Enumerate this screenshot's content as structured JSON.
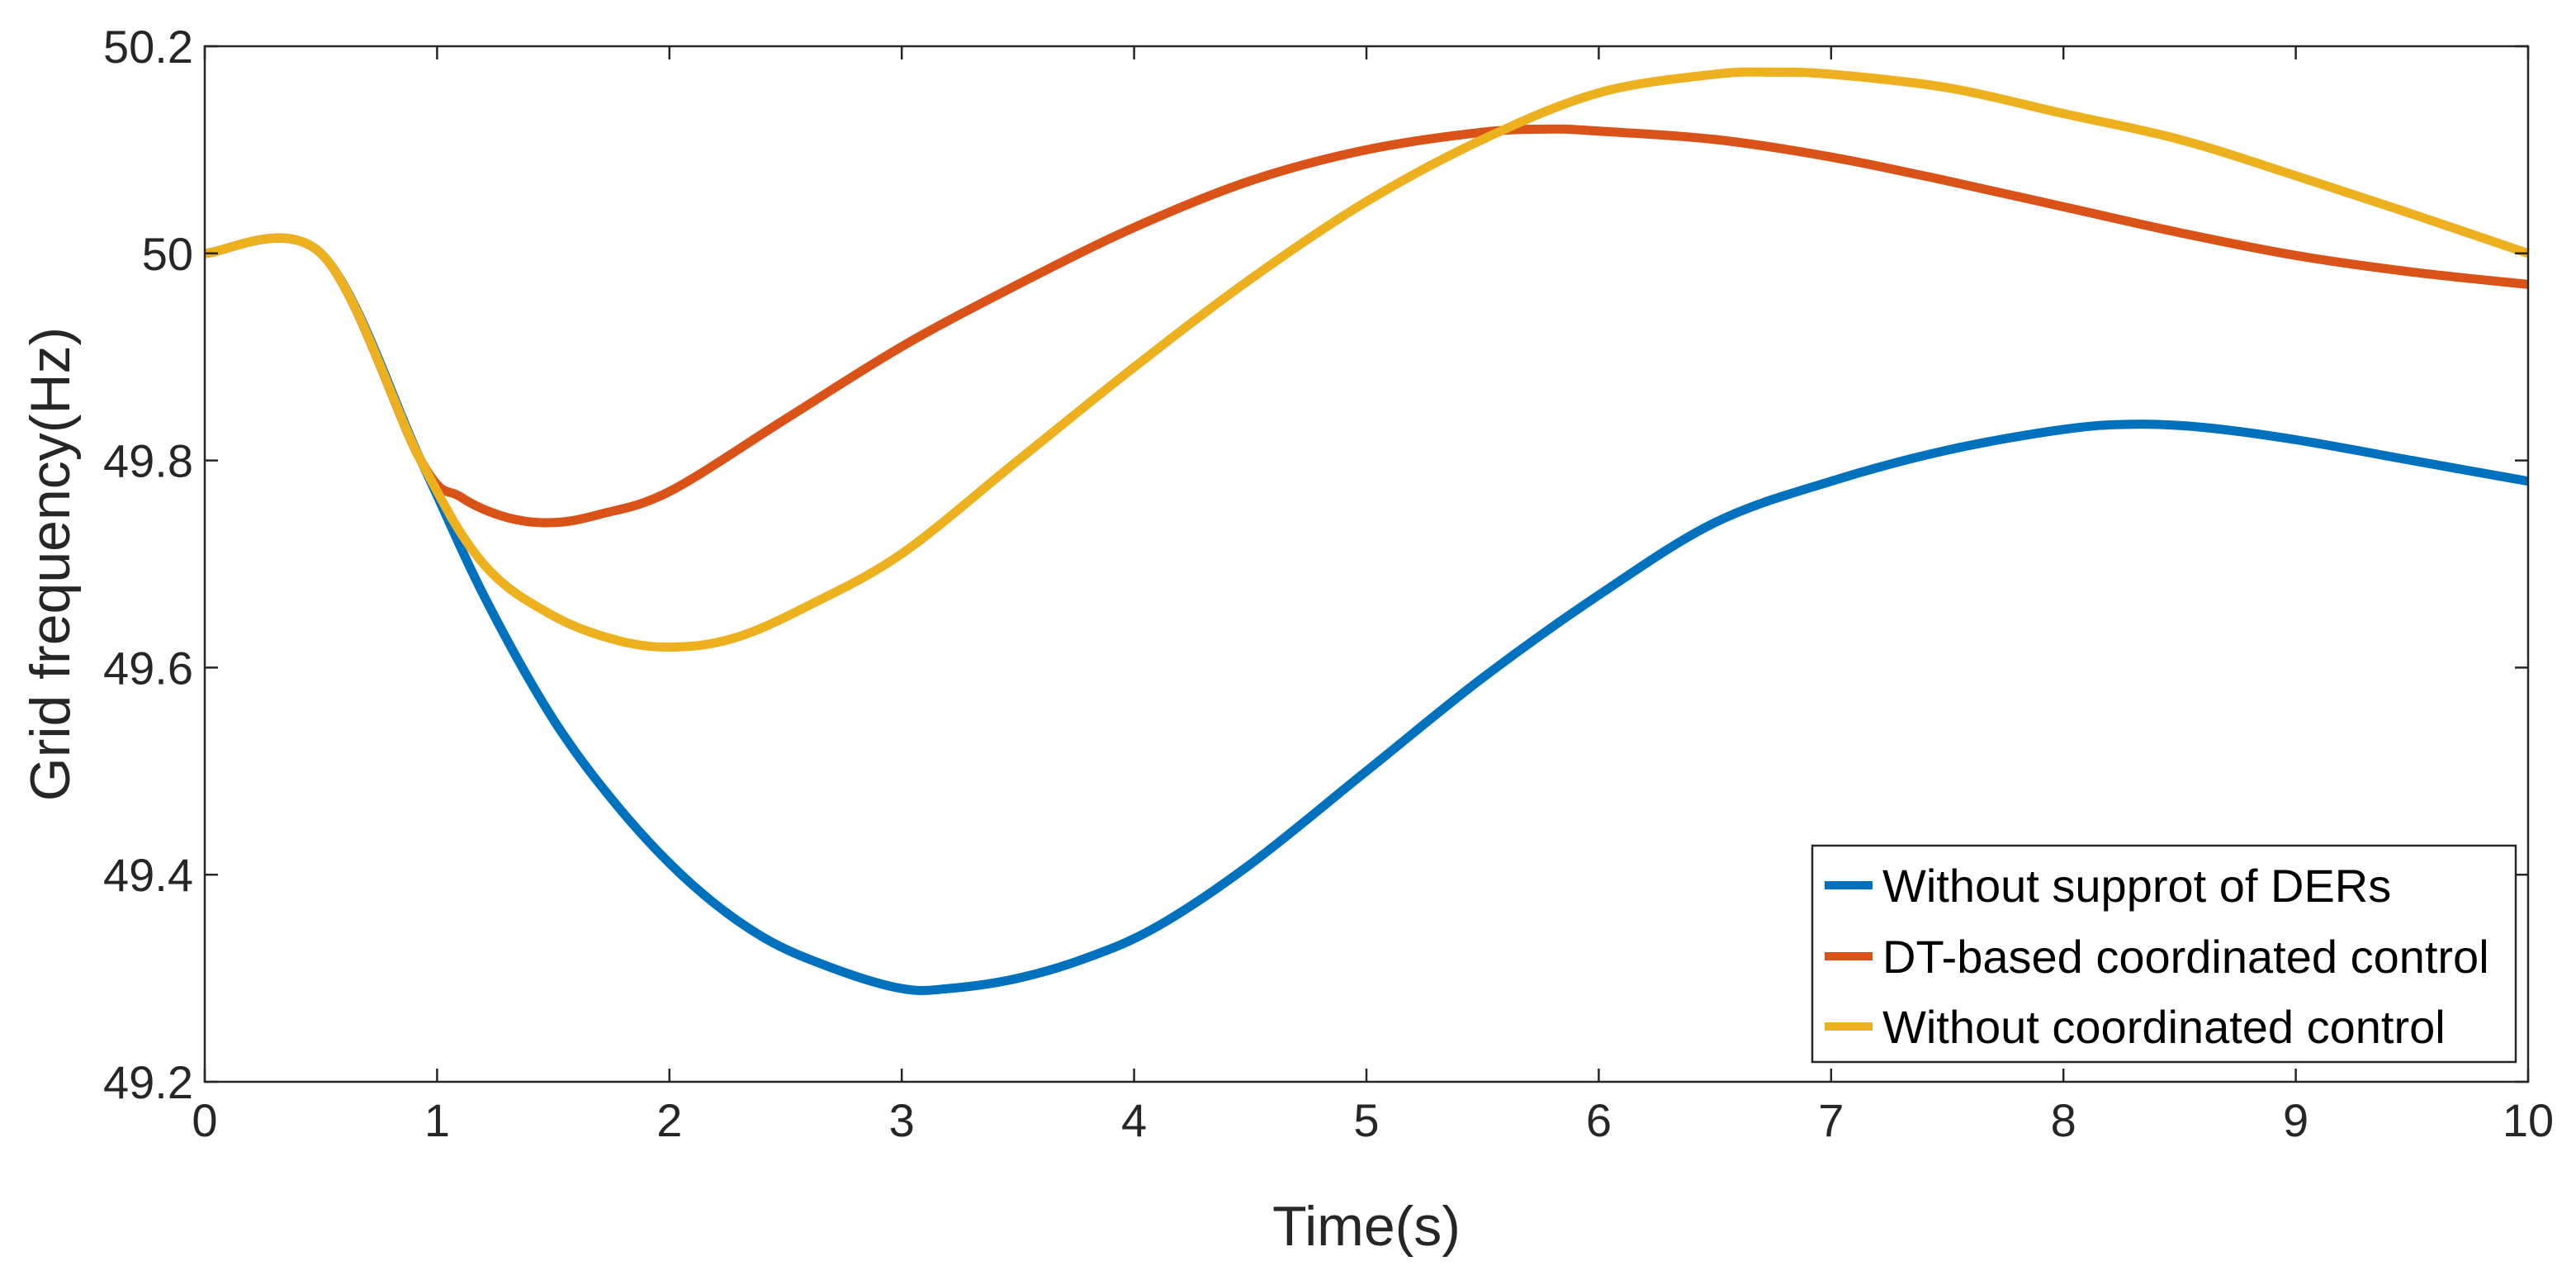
{
  "chart_data": {
    "type": "line",
    "title": "",
    "xlabel": "Time(s)",
    "ylabel": "Grid frequency(Hz)",
    "xlim": [
      0,
      10
    ],
    "ylim": [
      49.2,
      50.2
    ],
    "xticks": [
      0,
      1,
      2,
      3,
      4,
      5,
      6,
      7,
      8,
      9,
      10
    ],
    "yticks": [
      49.2,
      49.4,
      49.6,
      49.8,
      50,
      50.2
    ],
    "xtick_labels": [
      "0",
      "1",
      "2",
      "3",
      "4",
      "5",
      "6",
      "7",
      "8",
      "9",
      "10"
    ],
    "ytick_labels": [
      "49.2",
      "49.4",
      "49.6",
      "49.8",
      "50",
      "50.2"
    ],
    "grid": false,
    "legend_position": "bottom-right",
    "series": [
      {
        "name": "Without supprot of DERs",
        "color": "#0072BD",
        "x": [
          0,
          0.5,
          0.93,
          1.2,
          1.5,
          1.8,
          2.1,
          2.4,
          2.7,
          3.0,
          3.2,
          3.5,
          3.8,
          4.1,
          4.5,
          5.0,
          5.5,
          6.0,
          6.5,
          7.0,
          7.5,
          8.0,
          8.3,
          8.6,
          9.0,
          9.5,
          10
        ],
        "y": [
          50,
          50,
          49.8,
          49.67,
          49.55,
          49.46,
          49.39,
          49.34,
          49.31,
          49.29,
          49.29,
          49.3,
          49.32,
          49.35,
          49.41,
          49.5,
          49.59,
          49.67,
          49.74,
          49.78,
          49.81,
          49.83,
          49.835,
          49.832,
          49.82,
          49.8,
          49.78
        ]
      },
      {
        "name": "DT-based coordinated control",
        "color": "#D95319",
        "x": [
          0,
          0.5,
          0.93,
          1.1,
          1.3,
          1.5,
          1.7,
          2.0,
          2.5,
          3.0,
          3.5,
          4.0,
          4.5,
          5.0,
          5.5,
          5.8,
          6.0,
          6.5,
          7.0,
          7.5,
          8.0,
          8.5,
          9.0,
          9.5,
          10
        ],
        "y": [
          50,
          50,
          49.8,
          49.765,
          49.745,
          49.74,
          49.748,
          49.77,
          49.84,
          49.91,
          49.97,
          50.025,
          50.07,
          50.1,
          50.117,
          50.12,
          50.118,
          50.11,
          50.093,
          50.07,
          50.045,
          50.02,
          49.998,
          49.982,
          49.97
        ]
      },
      {
        "name": "Without coordinated control",
        "color": "#EDB120",
        "x": [
          0,
          0.5,
          0.93,
          1.2,
          1.5,
          1.8,
          2.05,
          2.3,
          2.6,
          3.0,
          3.5,
          4.0,
          4.5,
          5.0,
          5.5,
          6.0,
          6.5,
          6.75,
          7.0,
          7.5,
          8.0,
          8.5,
          9.0,
          9.5,
          10
        ],
        "y": [
          50,
          50,
          49.8,
          49.7,
          49.65,
          49.625,
          49.62,
          49.63,
          49.66,
          49.71,
          49.8,
          49.89,
          49.975,
          50.05,
          50.11,
          50.155,
          50.173,
          50.175,
          50.173,
          50.16,
          50.135,
          50.11,
          50.075,
          50.038,
          50.0
        ]
      }
    ]
  }
}
